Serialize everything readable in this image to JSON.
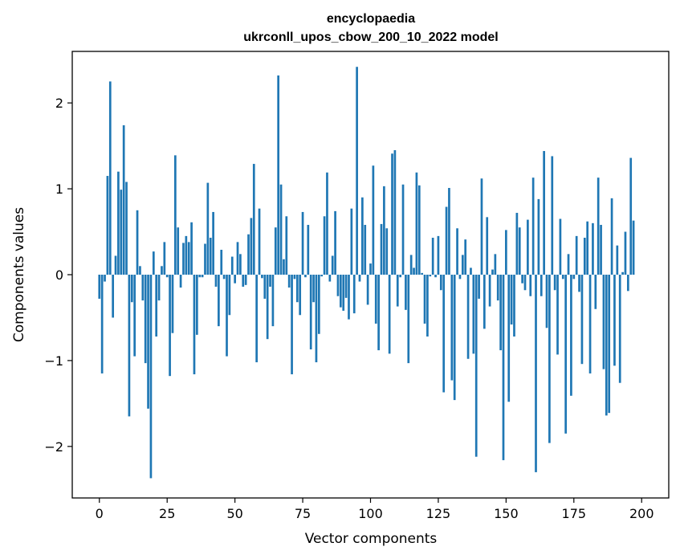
{
  "chart_data": {
    "type": "bar",
    "title_lines": [
      "encyclopaedia",
      "ukrconll_upos_cbow_200_10_2022 model"
    ],
    "xlabel": "Vector components",
    "ylabel": "Components values",
    "xlim": [
      -10,
      210
    ],
    "ylim": [
      -2.6,
      2.6
    ],
    "xticks": [
      0,
      25,
      50,
      75,
      100,
      125,
      150,
      175,
      200
    ],
    "yticks": [
      -2,
      -1,
      0,
      1,
      2
    ],
    "ytick_labels": [
      "−2",
      "−1",
      "0",
      "1",
      "2"
    ],
    "grid": false,
    "bar_color": "#1f77b4",
    "values": [
      -0.28,
      -1.15,
      -0.08,
      1.15,
      2.25,
      -0.5,
      0.22,
      1.2,
      0.99,
      1.74,
      1.08,
      -1.65,
      -0.32,
      -0.95,
      0.75,
      0.1,
      -0.3,
      -1.03,
      -1.56,
      -2.37,
      0.27,
      -0.72,
      -0.3,
      0.1,
      0.38,
      -0.03,
      -1.18,
      -0.68,
      1.39,
      0.55,
      -0.15,
      0.37,
      0.45,
      0.38,
      0.61,
      -1.16,
      -0.7,
      -0.03,
      -0.03,
      0.36,
      1.07,
      0.43,
      0.73,
      -0.14,
      -0.6,
      0.29,
      -0.05,
      -0.95,
      -0.47,
      0.21,
      -0.1,
      0.38,
      0.24,
      -0.14,
      -0.12,
      0.47,
      0.66,
      1.29,
      -1.02,
      0.77,
      -0.04,
      -0.28,
      -0.75,
      -0.14,
      -0.6,
      0.55,
      2.32,
      1.05,
      0.18,
      0.68,
      -0.15,
      -1.16,
      -0.05,
      -0.32,
      -0.47,
      0.73,
      -0.03,
      0.58,
      -0.87,
      -0.32,
      -1.02,
      -0.69,
      -0.02,
      0.68,
      1.19,
      -0.08,
      0.22,
      0.74,
      -0.25,
      -0.38,
      -0.42,
      -0.27,
      -0.52,
      0.77,
      -0.45,
      2.42,
      -0.08,
      0.9,
      0.58,
      -0.35,
      0.13,
      1.27,
      -0.57,
      -0.88,
      0.59,
      1.03,
      0.54,
      -0.92,
      1.41,
      1.45,
      -0.37,
      -0.03,
      1.05,
      -0.41,
      -1.03,
      0.23,
      0.08,
      1.19,
      1.04,
      0.02,
      -0.57,
      -0.72,
      -0.02,
      0.43,
      -0.03,
      0.45,
      -0.18,
      -1.37,
      0.79,
      1.01,
      -1.23,
      -1.46,
      0.54,
      -0.05,
      0.23,
      0.41,
      -0.98,
      0.08,
      -0.92,
      -2.12,
      -0.28,
      1.12,
      -0.63,
      0.67,
      -0.37,
      0.06,
      0.24,
      -0.3,
      -0.88,
      -2.16,
      0.52,
      -1.48,
      -0.58,
      -0.72,
      0.72,
      0.55,
      -0.1,
      -0.18,
      0.64,
      -0.25,
      1.13,
      -2.3,
      0.88,
      -0.25,
      1.44,
      -0.62,
      -1.96,
      1.38,
      -0.18,
      -0.93,
      0.65,
      -0.05,
      -1.85,
      0.24,
      -1.41,
      -0.05,
      0.45,
      -0.2,
      -1.04,
      0.43,
      0.62,
      -1.15,
      0.6,
      -0.4,
      1.13,
      0.58,
      -1.1,
      -1.64,
      -1.61,
      0.89,
      -1.06,
      0.34,
      -1.26,
      0.03,
      0.5,
      -0.19,
      1.36,
      0.63
    ]
  }
}
